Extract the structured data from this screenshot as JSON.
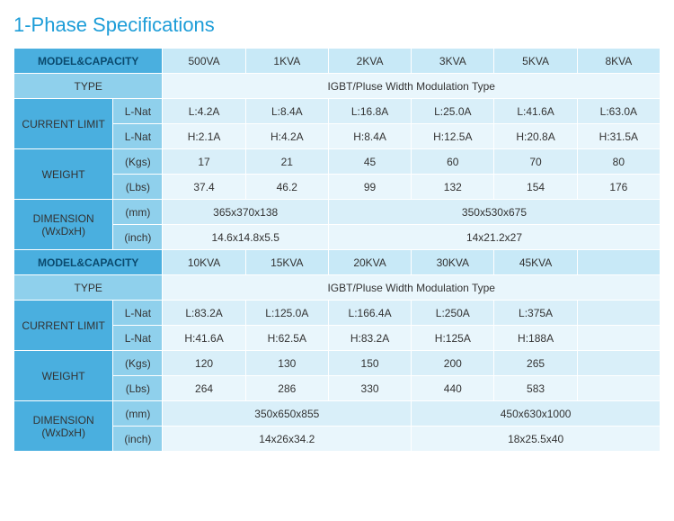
{
  "title": "1-Phase Specifications",
  "labels": {
    "modelCapacity": "MODEL&CAPACITY",
    "type": "TYPE",
    "currentLimit": "CURRENT LIMIT",
    "weight": "WEIGHT",
    "dimension": "DIMENSION (WxDxH)",
    "lnat": "L-Nat",
    "kgs": "(Kgs)",
    "lbs": "(Lbs)",
    "mm": "(mm)",
    "inch": "(inch)"
  },
  "typeValue": "IGBT/Pluse Width Modulation Type",
  "block1": {
    "capacities": [
      "500VA",
      "1KVA",
      "2KVA",
      "3KVA",
      "5KVA",
      "8KVA"
    ],
    "currentL": [
      "L:4.2A",
      "L:8.4A",
      "L:16.8A",
      "L:25.0A",
      "L:41.6A",
      "L:63.0A"
    ],
    "currentH": [
      "H:2.1A",
      "H:4.2A",
      "H:8.4A",
      "H:12.5A",
      "H:20.8A",
      "H:31.5A"
    ],
    "weightKgs": [
      "17",
      "21",
      "45",
      "60",
      "70",
      "80"
    ],
    "weightLbs": [
      "37.4",
      "46.2",
      "99",
      "132",
      "154",
      "176"
    ],
    "dimMmA": "365x370x138",
    "dimMmB": "350x530x675",
    "dimInA": "14.6x14.8x5.5",
    "dimInB": "14x21.2x27"
  },
  "block2": {
    "capacities": [
      "10KVA",
      "15KVA",
      "20KVA",
      "30KVA",
      "45KVA",
      ""
    ],
    "currentL": [
      "L:83.2A",
      "L:125.0A",
      "L:166.4A",
      "L:250A",
      "L:375A",
      ""
    ],
    "currentH": [
      "H:41.6A",
      "H:62.5A",
      "H:83.2A",
      "H:125A",
      "H:188A",
      ""
    ],
    "weightKgs": [
      "120",
      "130",
      "150",
      "200",
      "265",
      ""
    ],
    "weightLbs": [
      "264",
      "286",
      "330",
      "440",
      "583",
      ""
    ],
    "dimMmA": "350x650x855",
    "dimMmB": "450x630x1000",
    "dimInA": "14x26x34.2",
    "dimInB": "18x25.5x40"
  },
  "colors": {
    "title": "#1d9dd8",
    "hdrDarkBg": "#4aafdf",
    "hdrLightBg": "#c8e9f7",
    "sideLightBg": "#8fd0ec",
    "dataABg": "#e9f6fc",
    "dataBBg": "#d9eff9",
    "border": "#ffffff"
  }
}
